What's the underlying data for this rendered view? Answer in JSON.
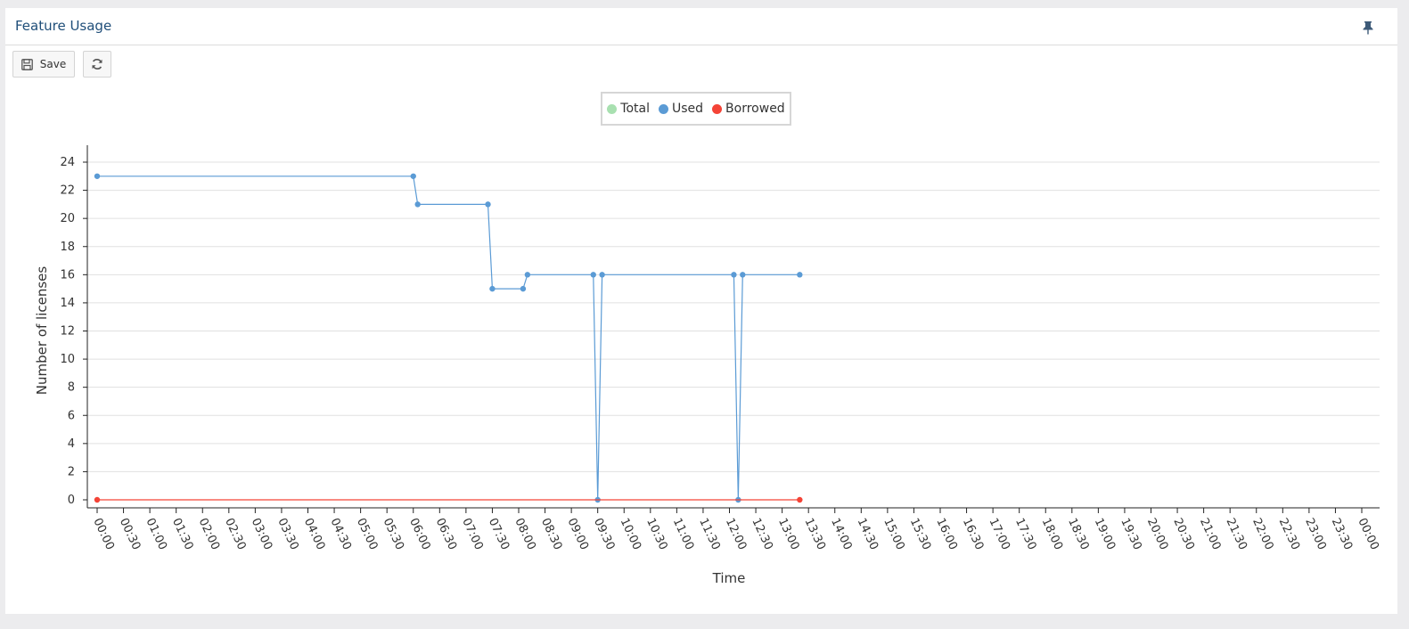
{
  "panel": {
    "title": "Feature Usage"
  },
  "toolbar": {
    "save_label": "Save"
  },
  "icons": {
    "pin": "pin-icon",
    "save": "floppy-disk-icon",
    "refresh": "refresh-icon"
  },
  "colors": {
    "title": "#1f4e79",
    "total": "#a8e0b0",
    "used": "#5b9bd5",
    "borrowed": "#f44336",
    "grid": "#e0e0e0",
    "axis": "#222222"
  },
  "legend": [
    {
      "label": "Total",
      "key": "total"
    },
    {
      "label": "Used",
      "key": "used"
    },
    {
      "label": "Borrowed",
      "key": "borrowed"
    }
  ],
  "chart_data": {
    "type": "line",
    "xlabel": "Time",
    "ylabel": "Number of licenses",
    "ylim": [
      0,
      24
    ],
    "yticks": [
      0,
      2,
      4,
      6,
      8,
      10,
      12,
      14,
      16,
      18,
      20,
      22,
      24
    ],
    "xlim_hours": [
      0,
      24
    ],
    "xticks": [
      "00:00",
      "00:30",
      "01:00",
      "01:30",
      "02:00",
      "02:30",
      "03:00",
      "03:30",
      "04:00",
      "04:30",
      "05:00",
      "05:30",
      "06:00",
      "06:30",
      "07:00",
      "07:30",
      "08:00",
      "08:30",
      "09:00",
      "09:30",
      "10:00",
      "10:30",
      "11:00",
      "11:30",
      "12:00",
      "12:30",
      "13:00",
      "13:30",
      "14:00",
      "14:30",
      "15:00",
      "15:30",
      "16:00",
      "16:30",
      "17:00",
      "17:30",
      "18:00",
      "18:30",
      "19:00",
      "19:30",
      "20:00",
      "20:30",
      "21:00",
      "21:30",
      "22:00",
      "22:30",
      "23:00",
      "23:30",
      "00:00"
    ],
    "grid": "horizontal",
    "legend_position": "top-center",
    "series": [
      {
        "name": "Used",
        "key": "used",
        "points": [
          [
            "00:00",
            23
          ],
          [
            "06:00",
            23
          ],
          [
            "06:05",
            21
          ],
          [
            "07:25",
            21
          ],
          [
            "07:30",
            15
          ],
          [
            "08:05",
            15
          ],
          [
            "08:10",
            16
          ],
          [
            "09:25",
            16
          ],
          [
            "09:30",
            0
          ],
          [
            "09:35",
            16
          ],
          [
            "12:05",
            16
          ],
          [
            "12:10",
            0
          ],
          [
            "12:15",
            16
          ],
          [
            "13:20",
            16
          ]
        ]
      },
      {
        "name": "Borrowed",
        "key": "borrowed",
        "points": [
          [
            "00:00",
            0
          ],
          [
            "13:20",
            0
          ]
        ]
      }
    ]
  }
}
